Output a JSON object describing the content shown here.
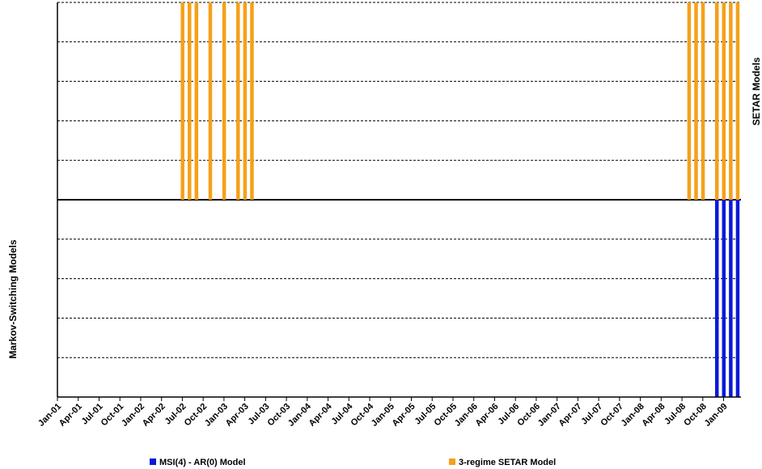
{
  "chart_data": {
    "type": "bar",
    "categories": [
      "Jan-01",
      null,
      null,
      "Apr-01",
      null,
      null,
      "Jul-01",
      null,
      null,
      "Oct-01",
      null,
      null,
      "Jan-02",
      null,
      null,
      "Apr-02",
      null,
      null,
      "Jul-02",
      null,
      null,
      "Oct-02",
      null,
      null,
      "Jan-03",
      null,
      null,
      "Apr-03",
      null,
      null,
      "Jul-03",
      null,
      null,
      "Oct-03",
      null,
      null,
      "Jan-04",
      null,
      null,
      "Apr-04",
      null,
      null,
      "Jul-04",
      null,
      null,
      "Oct-04",
      null,
      null,
      "Jan-05",
      null,
      null,
      "Apr-05",
      null,
      null,
      "Jul-05",
      null,
      null,
      "Oct-05",
      null,
      null,
      "Jan-06",
      null,
      null,
      "Apr-06",
      null,
      null,
      "Jul-06",
      null,
      null,
      "Oct-06",
      null,
      null,
      "Jan-07",
      null,
      null,
      "Apr-07",
      null,
      null,
      "Jul-07",
      null,
      null,
      "Oct-07",
      null,
      null,
      "Jan-08",
      null,
      null,
      "Apr-08",
      null,
      null,
      "Jul-08",
      null,
      null,
      "Oct-08",
      null,
      null,
      "Jan-09",
      null,
      null
    ],
    "series": [
      {
        "name": "MSI(4) - AR(0) Model",
        "color": "#0a1ad8",
        "axis_title": "Markov-Switching Models",
        "values": [
          0,
          0,
          0,
          0,
          0,
          0,
          0,
          0,
          0,
          0,
          0,
          0,
          0,
          0,
          0,
          0,
          0,
          0,
          0,
          0,
          0,
          0,
          0,
          0,
          0,
          0,
          0,
          0,
          0,
          0,
          0,
          0,
          0,
          0,
          0,
          0,
          0,
          0,
          0,
          0,
          0,
          0,
          0,
          0,
          0,
          0,
          0,
          0,
          0,
          0,
          0,
          0,
          0,
          0,
          0,
          0,
          0,
          0,
          0,
          0,
          0,
          0,
          0,
          0,
          0,
          0,
          0,
          0,
          0,
          0,
          0,
          0,
          0,
          0,
          0,
          0,
          0,
          0,
          0,
          0,
          0,
          0,
          0,
          0,
          0,
          0,
          0,
          0,
          0,
          0,
          0,
          0,
          0,
          0,
          0,
          -1,
          -1,
          -1,
          -1
        ]
      },
      {
        "name": "3-regime SETAR Model",
        "color": "#f5a01a",
        "axis_title": "SETAR Models",
        "values": [
          0,
          0,
          0,
          0,
          0,
          0,
          0,
          0,
          0,
          0,
          0,
          0,
          0,
          0,
          0,
          0,
          0,
          0,
          1,
          1,
          1,
          0,
          1,
          0,
          1,
          0,
          1,
          1,
          1,
          0,
          0,
          0,
          0,
          0,
          0,
          0,
          0,
          0,
          0,
          0,
          0,
          0,
          0,
          0,
          0,
          0,
          0,
          0,
          0,
          0,
          0,
          0,
          0,
          0,
          0,
          0,
          0,
          0,
          0,
          0,
          0,
          0,
          0,
          0,
          0,
          0,
          0,
          0,
          0,
          0,
          0,
          0,
          0,
          0,
          0,
          0,
          0,
          0,
          0,
          0,
          0,
          0,
          0,
          0,
          0,
          0,
          0,
          0,
          0,
          0,
          0,
          1,
          1,
          1,
          0,
          1,
          1,
          1,
          1
        ]
      }
    ],
    "ylim": [
      -1,
      1
    ],
    "yticks": [
      -1,
      -0.8,
      -0.6,
      -0.4,
      -0.2,
      0,
      0.2,
      0.4,
      0.6,
      0.8,
      1
    ],
    "grid": true
  }
}
